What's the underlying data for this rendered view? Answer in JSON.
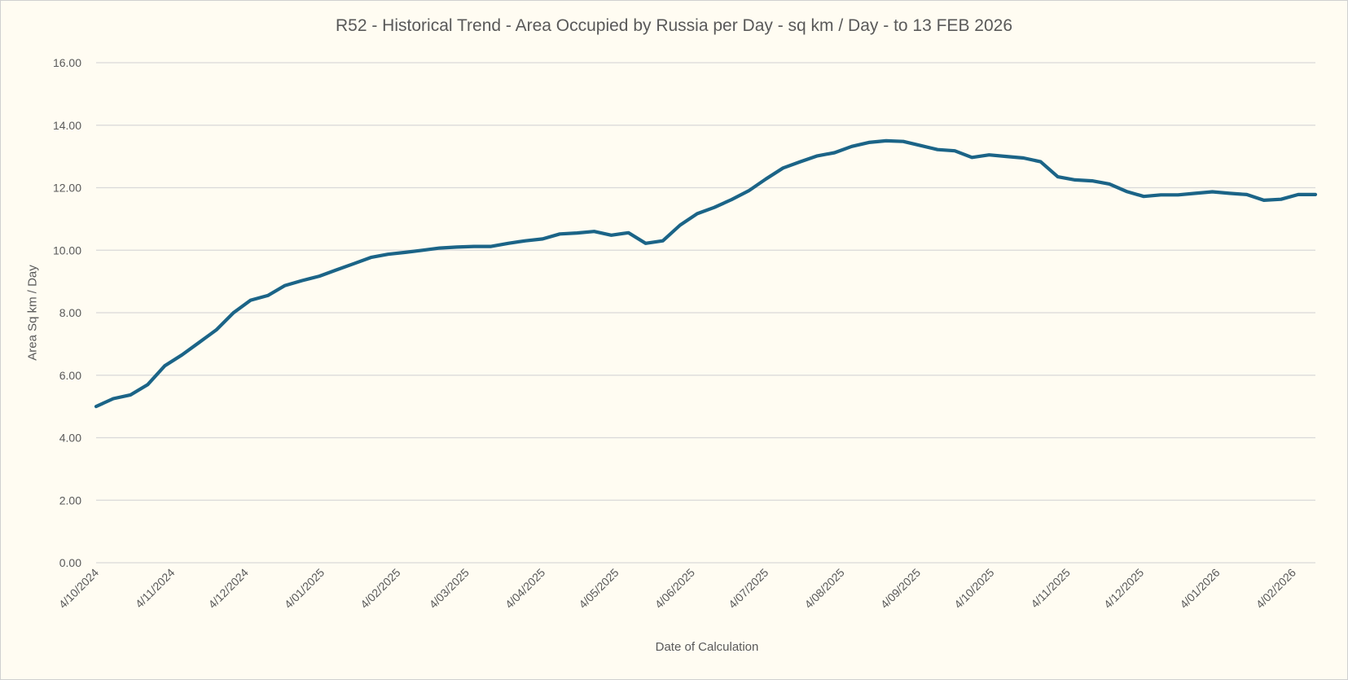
{
  "chart_data": {
    "type": "line",
    "title": "R52 - Historical Trend - Area Occupied by Russia per Day - sq km / Day - to 13 FEB 2026",
    "xlabel": "Date of Calculation",
    "ylabel": "Area Sq km / Day",
    "ylim": [
      0,
      16
    ],
    "yticks": [
      "0.00",
      "2.00",
      "4.00",
      "6.00",
      "8.00",
      "10.00",
      "12.00",
      "14.00",
      "16.00"
    ],
    "xlim": [
      "2024-10-04",
      "2026-02-13"
    ],
    "xtick_labels": [
      "4/10/2024",
      "4/11/2024",
      "4/12/2024",
      "4/01/2025",
      "4/02/2025",
      "4/03/2025",
      "4/04/2025",
      "4/05/2025",
      "4/06/2025",
      "4/07/2025",
      "4/08/2025",
      "4/09/2025",
      "4/10/2025",
      "4/11/2025",
      "4/12/2025",
      "4/01/2026",
      "4/02/2026"
    ],
    "xtick_dates": [
      "2024-10-04",
      "2024-11-04",
      "2024-12-04",
      "2025-01-04",
      "2025-02-04",
      "2025-03-04",
      "2025-04-04",
      "2025-05-04",
      "2025-06-04",
      "2025-07-04",
      "2025-08-04",
      "2025-09-04",
      "2025-10-04",
      "2025-11-04",
      "2025-12-04",
      "2026-01-04",
      "2026-02-04"
    ],
    "grid": "horizontal",
    "line_color": "#1b6487",
    "x": [
      "2024-10-04",
      "2024-10-11",
      "2024-10-18",
      "2024-10-25",
      "2024-11-01",
      "2024-11-08",
      "2024-11-15",
      "2024-11-22",
      "2024-11-29",
      "2024-12-06",
      "2024-12-13",
      "2024-12-20",
      "2024-12-27",
      "2025-01-03",
      "2025-01-10",
      "2025-01-17",
      "2025-01-24",
      "2025-01-31",
      "2025-02-07",
      "2025-02-14",
      "2025-02-21",
      "2025-02-28",
      "2025-03-07",
      "2025-03-14",
      "2025-03-21",
      "2025-03-28",
      "2025-04-04",
      "2025-04-11",
      "2025-04-18",
      "2025-04-25",
      "2025-05-02",
      "2025-05-09",
      "2025-05-16",
      "2025-05-23",
      "2025-05-30",
      "2025-06-06",
      "2025-06-13",
      "2025-06-20",
      "2025-06-27",
      "2025-07-04",
      "2025-07-11",
      "2025-07-18",
      "2025-07-25",
      "2025-08-01",
      "2025-08-08",
      "2025-08-15",
      "2025-08-22",
      "2025-08-29",
      "2025-09-05",
      "2025-09-12",
      "2025-09-19",
      "2025-09-26",
      "2025-10-03",
      "2025-10-10",
      "2025-10-17",
      "2025-10-24",
      "2025-10-31",
      "2025-11-07",
      "2025-11-14",
      "2025-11-21",
      "2025-11-28",
      "2025-12-05",
      "2025-12-12",
      "2025-12-19",
      "2025-12-26",
      "2026-01-02",
      "2026-01-09",
      "2026-01-16",
      "2026-01-23",
      "2026-01-30",
      "2026-02-06",
      "2026-02-13"
    ],
    "values": [
      5.0,
      5.25,
      5.37,
      5.7,
      6.3,
      6.65,
      7.05,
      7.45,
      8.0,
      8.4,
      8.55,
      8.87,
      9.03,
      9.17,
      9.37,
      9.57,
      9.77,
      9.87,
      9.93,
      10.0,
      10.07,
      10.1,
      10.12,
      10.12,
      10.22,
      10.3,
      10.36,
      10.52,
      10.55,
      10.6,
      10.48,
      10.56,
      10.22,
      10.3,
      10.8,
      11.17,
      11.37,
      11.62,
      11.9,
      12.28,
      12.63,
      12.83,
      13.02,
      13.12,
      13.32,
      13.45,
      13.5,
      13.48,
      13.35,
      13.22,
      13.18,
      12.97,
      13.05,
      13.0,
      12.95,
      12.83,
      12.35,
      12.25,
      12.22,
      12.12,
      11.88,
      11.72,
      11.77,
      11.77,
      11.82,
      11.87,
      11.82,
      11.78,
      11.6,
      11.63,
      11.78,
      11.78
    ]
  }
}
